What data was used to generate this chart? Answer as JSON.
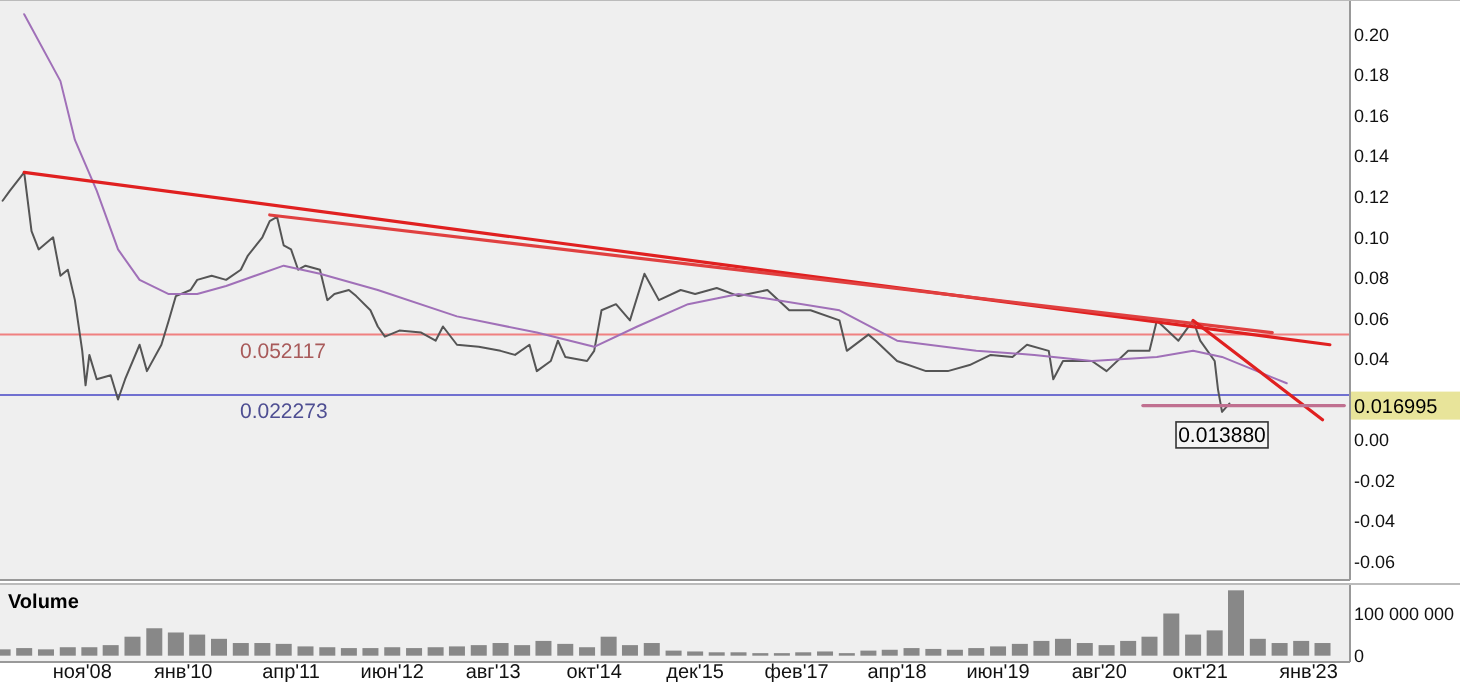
{
  "chart_data": [
    {
      "type": "line",
      "xlim": [
        "2007-11-20",
        "2023-06-25"
      ],
      "ylim": [
        -0.069,
        0.217
      ],
      "yticks": [
        {
          "value": -0.06,
          "label": "-0.06"
        },
        {
          "value": -0.04,
          "label": "-0.04"
        },
        {
          "value": -0.02,
          "label": "-0.02"
        },
        {
          "value": 0,
          "label": "0.00"
        },
        {
          "value": 0.04,
          "label": "0.04"
        },
        {
          "value": 0.06,
          "label": "0.06"
        },
        {
          "value": 0.08,
          "label": "0.08"
        },
        {
          "value": 0.1,
          "label": "0.10"
        },
        {
          "value": 0.12,
          "label": "0.12"
        },
        {
          "value": 0.14,
          "label": "0.14"
        },
        {
          "value": 0.16,
          "label": "0.16"
        },
        {
          "value": 0.18,
          "label": "0.18"
        },
        {
          "value": 0.2,
          "label": "0.20"
        }
      ],
      "tick_labels": "y",
      "series": [
        {
          "color": "#555555",
          "x": [
            "2007-12",
            "2008-01",
            "2008-03",
            "2008-04",
            "2008-05",
            "2008-07",
            "2008-08",
            "2008-09",
            "2008-10",
            "2008-11",
            "2008-11-15",
            "2008-12",
            "2009-01",
            "2009-03",
            "2009-04",
            "2009-05",
            "2009-07",
            "2009-08",
            "2009-10",
            "2009-11",
            "2009-12",
            "2010-02",
            "2010-03",
            "2010-05",
            "2010-07",
            "2010-09",
            "2010-10",
            "2010-12",
            "2011-01",
            "2011-02",
            "2011-03",
            "2011-04",
            "2011-05",
            "2011-06",
            "2011-08",
            "2011-09",
            "2011-10",
            "2011-12",
            "2012-01",
            "2012-03",
            "2012-04",
            "2012-05",
            "2012-07",
            "2012-10",
            "2012-12",
            "2013-01",
            "2013-03",
            "2013-06",
            "2013-09",
            "2013-11",
            "2014-01",
            "2014-02",
            "2014-04",
            "2014-05",
            "2014-06",
            "2014-09",
            "2014-10",
            "2014-11",
            "2015-01",
            "2015-03",
            "2015-05",
            "2015-07",
            "2015-10",
            "2015-12",
            "2016-03",
            "2016-06",
            "2016-10",
            "2017-01",
            "2017-04",
            "2017-08",
            "2017-09",
            "2017-12",
            "2018-01",
            "2018-04",
            "2018-08",
            "2018-11",
            "2019-02",
            "2019-05",
            "2019-08",
            "2019-10",
            "2020-01",
            "2020-01-20",
            "2020-03",
            "2020-07",
            "2020-09",
            "2020-12",
            "2021-03",
            "2021-04",
            "2021-07",
            "2021-09",
            "2021-10",
            "2021-12",
            "2021-12-15",
            "2022-01",
            "2022-02"
          ],
          "values": [
            0.118,
            0.123,
            0.132,
            0.103,
            0.094,
            0.1,
            0.081,
            0.084,
            0.069,
            0.044,
            0.027,
            0.042,
            0.03,
            0.032,
            0.02,
            0.03,
            0.047,
            0.034,
            0.047,
            0.059,
            0.071,
            0.074,
            0.079,
            0.081,
            0.079,
            0.084,
            0.091,
            0.1,
            0.108,
            0.11,
            0.096,
            0.094,
            0.084,
            0.086,
            0.084,
            0.069,
            0.072,
            0.074,
            0.071,
            0.064,
            0.056,
            0.051,
            0.054,
            0.053,
            0.049,
            0.056,
            0.047,
            0.046,
            0.044,
            0.042,
            0.047,
            0.034,
            0.039,
            0.049,
            0.041,
            0.039,
            0.044,
            0.064,
            0.067,
            0.059,
            0.082,
            0.069,
            0.074,
            0.072,
            0.075,
            0.071,
            0.074,
            0.064,
            0.064,
            0.059,
            0.044,
            0.052,
            0.049,
            0.039,
            0.034,
            0.034,
            0.037,
            0.042,
            0.041,
            0.047,
            0.044,
            0.03,
            0.039,
            0.039,
            0.034,
            0.044,
            0.044,
            0.059,
            0.049,
            0.059,
            0.049,
            0.039,
            0.025,
            0.01388,
            0.018
          ]
        },
        {
          "color": "#a070b8",
          "x": [
            "2008-03",
            "2008-08",
            "2008-10",
            "2009-01",
            "2009-04",
            "2009-07",
            "2009-11",
            "2010-03",
            "2010-07",
            "2011-03",
            "2011-08",
            "2012-04",
            "2013-03",
            "2014-02",
            "2014-10",
            "2015-04",
            "2015-11",
            "2016-06",
            "2017-08",
            "2018-04",
            "2019-03",
            "2019-11",
            "2020-07",
            "2021-04",
            "2021-09",
            "2022-01",
            "2022-10"
          ],
          "values": [
            0.21,
            0.177,
            0.148,
            0.123,
            0.094,
            0.079,
            0.072,
            0.072,
            0.076,
            0.086,
            0.082,
            0.074,
            0.061,
            0.053,
            0.046,
            0.056,
            0.067,
            0.072,
            0.064,
            0.049,
            0.044,
            0.042,
            0.039,
            0.041,
            0.044,
            0.041,
            0.028
          ]
        },
        {
          "color": "#e02020",
          "x": [
            "2008-03",
            "2023-04"
          ],
          "values": [
            0.132,
            0.047
          ]
        },
        {
          "color": "#e04040",
          "x": [
            "2011-01",
            "2022-08"
          ],
          "values": [
            0.111,
            0.053
          ]
        },
        {
          "color": "#e02020",
          "x": [
            "2021-09",
            "2023-03"
          ],
          "values": [
            0.059,
            0.01
          ]
        },
        {
          "color": "#c07090",
          "x": [
            "2021-02",
            "2023-06"
          ],
          "values": [
            0.017,
            0.017
          ]
        }
      ],
      "ref_lines": [
        {
          "axis": "y",
          "value": 0.052117,
          "label": "0.052117",
          "color": "#f08080"
        },
        {
          "axis": "y",
          "value": 0.022273,
          "label": "0.022273",
          "color": "#7070d0"
        }
      ],
      "annotations": [
        {
          "text": "0.013880",
          "x": "2022-01",
          "y": 0.01388
        },
        {
          "text": "0.016995",
          "x": "2023-06-25",
          "y": 0.016995
        }
      ]
    },
    {
      "type": "bar",
      "title": "Volume",
      "xlim": [
        "2007-11-20",
        "2023-06-25"
      ],
      "ylim": [
        -15000000,
        170000000
      ],
      "yticks": [
        0,
        {
          "value": 100000000,
          "label": "100 000 000"
        }
      ],
      "xticks": [
        {
          "value": "2008-11",
          "label": "ноя'08"
        },
        {
          "value": "2010-01",
          "label": "янв'10"
        },
        {
          "value": "2011-04",
          "label": "апр'11"
        },
        {
          "value": "2012-06",
          "label": "июн'12"
        },
        {
          "value": "2013-08",
          "label": "авг'13"
        },
        {
          "value": "2014-10",
          "label": "окт'14"
        },
        {
          "value": "2015-12",
          "label": "дек'15"
        },
        {
          "value": "2017-02",
          "label": "фев'17"
        },
        {
          "value": "2018-04",
          "label": "апр'18"
        },
        {
          "value": "2019-06",
          "label": "июн'19"
        },
        {
          "value": "2020-08",
          "label": "авг'20"
        },
        {
          "value": "2021-10",
          "label": "окт'21"
        },
        {
          "value": "2023-01",
          "label": "янв'23"
        }
      ],
      "x": [
        "2007-12",
        "2008-03",
        "2008-06",
        "2008-09",
        "2008-12",
        "2009-03",
        "2009-06",
        "2009-09",
        "2009-12",
        "2010-03",
        "2010-06",
        "2010-09",
        "2010-12",
        "2011-03",
        "2011-06",
        "2011-09",
        "2011-12",
        "2012-03",
        "2012-06",
        "2012-09",
        "2012-12",
        "2013-03",
        "2013-06",
        "2013-09",
        "2013-12",
        "2014-03",
        "2014-06",
        "2014-09",
        "2014-12",
        "2015-03",
        "2015-06",
        "2015-09",
        "2015-12",
        "2016-03",
        "2016-06",
        "2016-09",
        "2016-12",
        "2017-03",
        "2017-06",
        "2017-09",
        "2017-12",
        "2018-03",
        "2018-06",
        "2018-09",
        "2018-12",
        "2019-03",
        "2019-06",
        "2019-09",
        "2019-12",
        "2020-03",
        "2020-06",
        "2020-09",
        "2020-12",
        "2021-03",
        "2021-06",
        "2021-09",
        "2021-12",
        "2022-03",
        "2022-06",
        "2022-09",
        "2022-12",
        "2023-03"
      ],
      "series": [
        {
          "color": "#888888",
          "values": [
            15000000,
            18000000,
            15000000,
            20000000,
            20000000,
            25000000,
            45000000,
            65000000,
            55000000,
            50000000,
            40000000,
            30000000,
            30000000,
            28000000,
            22000000,
            20000000,
            18000000,
            18000000,
            20000000,
            18000000,
            20000000,
            22000000,
            25000000,
            30000000,
            25000000,
            35000000,
            28000000,
            20000000,
            45000000,
            25000000,
            30000000,
            12000000,
            10000000,
            8000000,
            8000000,
            6000000,
            6000000,
            8000000,
            10000000,
            6000000,
            12000000,
            14000000,
            18000000,
            16000000,
            14000000,
            18000000,
            22000000,
            28000000,
            35000000,
            40000000,
            30000000,
            25000000,
            35000000,
            45000000,
            100000000,
            50000000,
            60000000,
            155000000,
            40000000,
            30000000,
            35000000,
            30000000
          ]
        }
      ]
    }
  ]
}
